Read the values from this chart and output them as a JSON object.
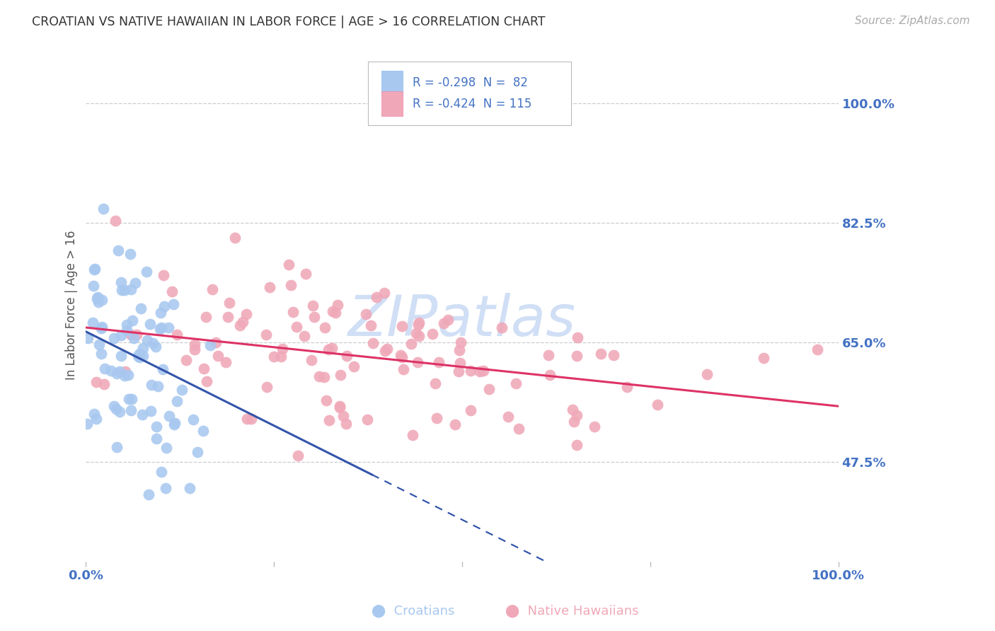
{
  "title": "CROATIAN VS NATIVE HAWAIIAN IN LABOR FORCE | AGE > 16 CORRELATION CHART",
  "source": "Source: ZipAtlas.com",
  "ylabel": "In Labor Force | Age > 16",
  "xlim": [
    0.0,
    1.0
  ],
  "ylim": [
    0.33,
    1.08
  ],
  "yticks": [
    0.475,
    0.65,
    0.825,
    1.0
  ],
  "ytick_labels": [
    "47.5%",
    "65.0%",
    "82.5%",
    "100.0%"
  ],
  "color_croatian_fill": "#A8C8F0",
  "color_croatian_edge": "#A8C8F0",
  "color_hawaiian_fill": "#F0A8B8",
  "color_hawaiian_edge": "#F0A8B8",
  "color_line_croatian": "#3355AA",
  "color_line_hawaiian": "#DD3366",
  "color_axis_tick": "#4472C4",
  "watermark": "ZIPatlas",
  "watermark_color": "#D0DFF5",
  "R_croatian": -0.298,
  "N_croatian": 82,
  "R_hawaiian": -0.424,
  "N_hawaiian": 115,
  "seed": 42,
  "background_color": "#FFFFFF",
  "grid_color": "#CCCCCC",
  "legend_text_color": "#4472C4",
  "legend_r_color": "#DD3366"
}
